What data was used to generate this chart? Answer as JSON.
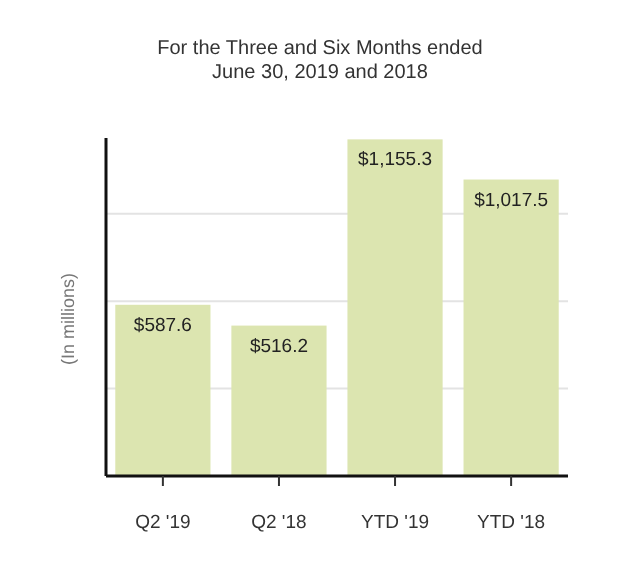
{
  "chart_data": {
    "type": "bar",
    "title": "For the Three and Six Months ended\nJune 30, 2019 and 2018",
    "ylabel": "(In millions)",
    "categories": [
      "Q2 '19",
      "Q2 '18",
      "YTD '19",
      "YTD '18"
    ],
    "values": [
      587.6,
      516.2,
      1155.3,
      1017.5
    ],
    "value_labels": [
      "$587.6",
      "$516.2",
      "$1,155.3",
      "$1,017.5"
    ],
    "color": "#dce5b0",
    "ylim": [
      0,
      1160
    ],
    "yticks": [
      {
        "value": 300,
        "label": null
      },
      {
        "value": 600,
        "label": null
      },
      {
        "value": 900,
        "label": null
      }
    ],
    "grid": "y",
    "tick_labels": "x"
  }
}
